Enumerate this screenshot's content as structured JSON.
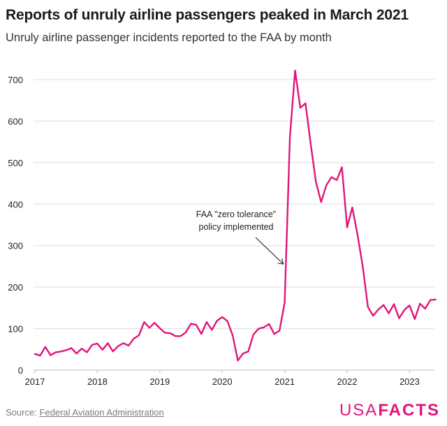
{
  "title": "Reports of unruly airline passengers peaked in March 2021",
  "subtitle": "Unruly airline passenger incidents reported to the FAA by month",
  "source_label": "Source:",
  "source_name": "Federal Aviation Administration",
  "logo": {
    "usa": "USA",
    "facts": "FACTS"
  },
  "colors": {
    "line": "#e0157a",
    "grid": "#dddddd",
    "text": "#1a1a1a"
  },
  "chart_data": {
    "type": "line",
    "title": "Reports of unruly airline passengers peaked in March 2021",
    "xlabel": "",
    "ylabel": "",
    "x_ticks": [
      "2017",
      "2018",
      "2019",
      "2020",
      "2021",
      "2022",
      "2023"
    ],
    "y_ticks": [
      "0",
      "100",
      "200",
      "300",
      "400",
      "500",
      "600",
      "700"
    ],
    "ylim": [
      0,
      720
    ],
    "annotation": {
      "line1": "FAA \"zero tolerance\"",
      "line2": "policy implemented",
      "month_index": 48
    },
    "series": [
      {
        "name": "Unruly passenger incidents",
        "start": "2017-01",
        "values": [
          39,
          35,
          56,
          36,
          43,
          45,
          48,
          53,
          40,
          52,
          43,
          61,
          64,
          49,
          65,
          45,
          58,
          65,
          59,
          76,
          84,
          116,
          102,
          114,
          101,
          90,
          89,
          82,
          82,
          91,
          112,
          109,
          87,
          116,
          97,
          119,
          128,
          118,
          84,
          23,
          40,
          45,
          86,
          100,
          103,
          111,
          87,
          95,
          163,
          560,
          722,
          632,
          643,
          545,
          454,
          405,
          445,
          465,
          458,
          489,
          344,
          392,
          326,
          250,
          152,
          131,
          146,
          157,
          137,
          159,
          125,
          145,
          156,
          123,
          160,
          148,
          169,
          170
        ]
      }
    ]
  }
}
